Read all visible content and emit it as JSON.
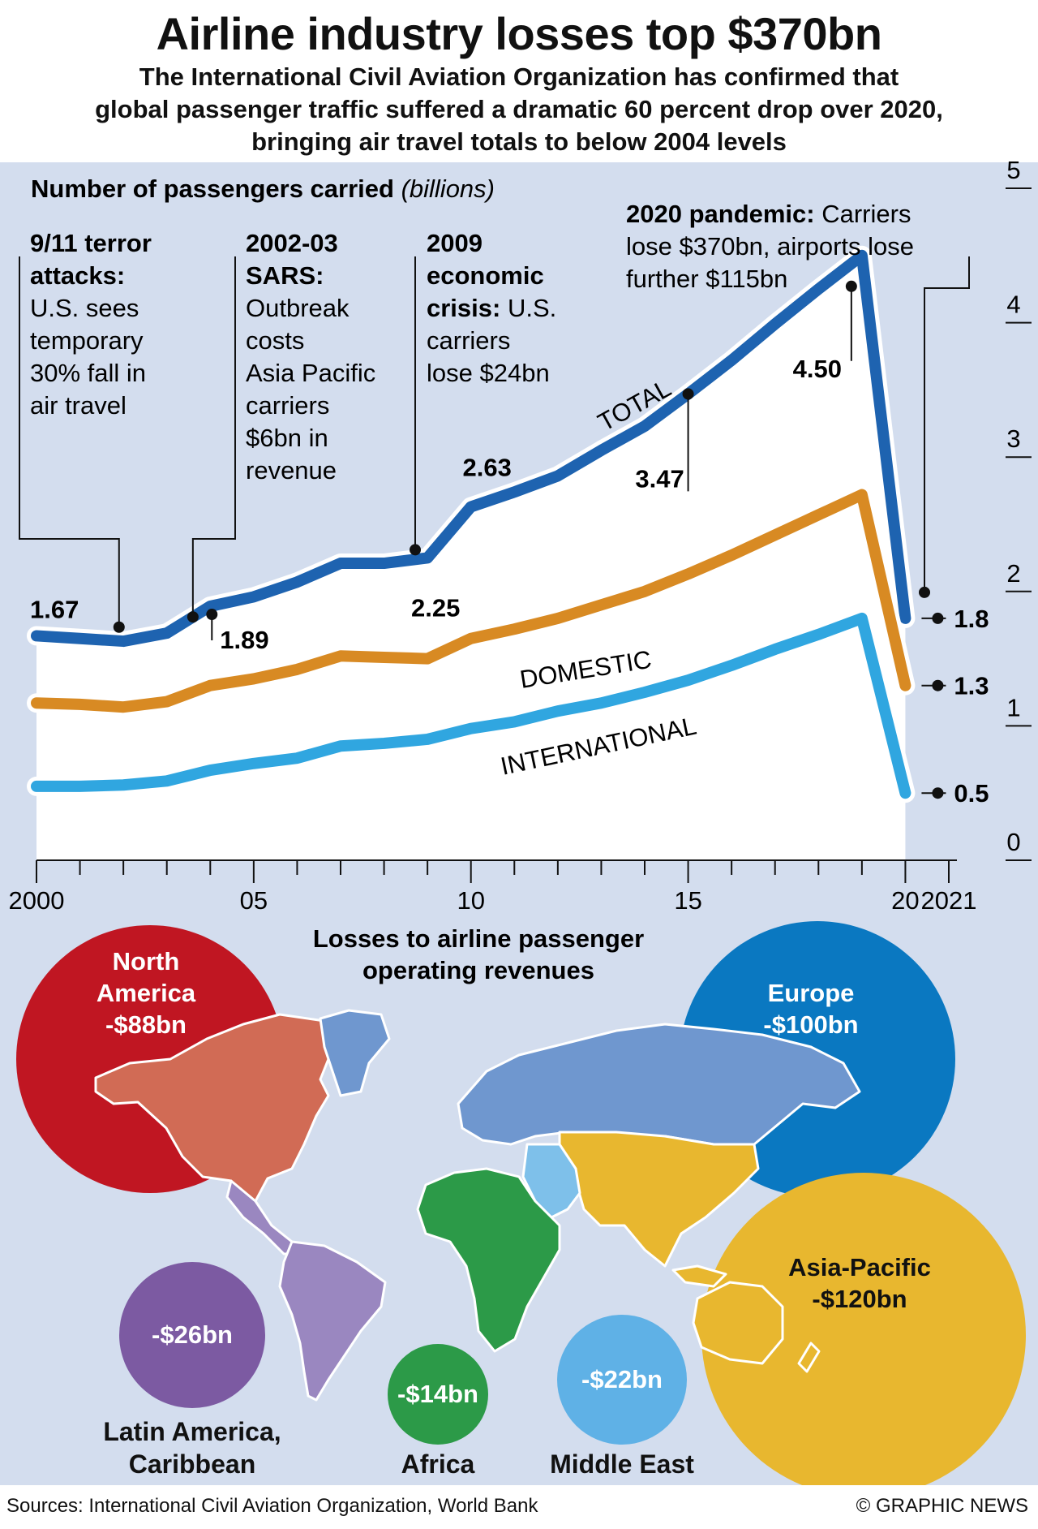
{
  "title": "Airline industry losses top $370bn",
  "subtitle_lines": [
    "The International Civil Aviation Organization has confirmed that",
    "global passenger traffic suffered a dramatic 60 percent drop over 2020,",
    "bringing air travel totals to below 2004 levels"
  ],
  "chart_heading": "Number of passengers carried",
  "chart_heading_units": "(billions)",
  "colors": {
    "background_panel": "#d3ddee",
    "total": "#1e63b0",
    "domestic": "#d88a23",
    "international": "#30a6e0",
    "north_america": "#c01622",
    "europe": "#0a78c1",
    "asia_pacific": "#e8b72f",
    "latin_america": "#7c5aa2",
    "africa": "#2c9a48",
    "middle_east": "#5fb1e6"
  },
  "chart_data": {
    "type": "line",
    "x": [
      2000,
      2001,
      2002,
      2003,
      2004,
      2005,
      2006,
      2007,
      2008,
      2009,
      2010,
      2011,
      2012,
      2013,
      2014,
      2015,
      2016,
      2017,
      2018,
      2019,
      2020
    ],
    "ylim": [
      0,
      5
    ],
    "xlim": [
      2000,
      2021
    ],
    "y_ticks": [
      "0",
      "1",
      "2",
      "3",
      "4",
      "5"
    ],
    "x_tick_labels": [
      {
        "year": 2000,
        "label": "2000"
      },
      {
        "year": 2005,
        "label": "05"
      },
      {
        "year": 2010,
        "label": "10"
      },
      {
        "year": 2015,
        "label": "15"
      },
      {
        "year": 2020,
        "label": "20"
      },
      {
        "year": 2021,
        "label": "2021"
      }
    ],
    "series": [
      {
        "name": "TOTAL",
        "color": "#1e63b0",
        "values": [
          1.67,
          1.65,
          1.63,
          1.69,
          1.89,
          1.96,
          2.07,
          2.21,
          2.21,
          2.25,
          2.63,
          2.74,
          2.86,
          3.05,
          3.23,
          3.47,
          3.72,
          3.99,
          4.25,
          4.5,
          1.8
        ]
      },
      {
        "name": "DOMESTIC",
        "color": "#d88a23",
        "values": [
          1.17,
          1.16,
          1.14,
          1.18,
          1.3,
          1.35,
          1.42,
          1.52,
          1.51,
          1.5,
          1.65,
          1.72,
          1.8,
          1.9,
          2.0,
          2.13,
          2.27,
          2.42,
          2.57,
          2.72,
          1.3
        ]
      },
      {
        "name": "INTERNATIONAL",
        "color": "#30a6e0",
        "values": [
          0.55,
          0.55,
          0.56,
          0.59,
          0.67,
          0.72,
          0.76,
          0.85,
          0.87,
          0.9,
          0.98,
          1.03,
          1.11,
          1.17,
          1.25,
          1.34,
          1.45,
          1.57,
          1.68,
          1.8,
          0.5
        ]
      }
    ],
    "value_labels": [
      {
        "year": 2000,
        "value": "1.67"
      },
      {
        "year": 2004,
        "value": "1.89"
      },
      {
        "year": 2009,
        "value": "2.25"
      },
      {
        "year": 2010,
        "value": "2.63"
      },
      {
        "year": 2015,
        "value": "3.47"
      },
      {
        "year": 2019,
        "value": "4.50"
      },
      {
        "year": 2020,
        "value": "1.8",
        "series": "TOTAL"
      },
      {
        "year": 2020,
        "value": "1.3",
        "series": "DOMESTIC"
      },
      {
        "year": 2020,
        "value": "0.5",
        "series": "INTERNATIONAL"
      }
    ]
  },
  "annotations": [
    {
      "key": "a911",
      "bold": "9/11 terror attacks:",
      "text": "U.S. sees temporary 30% fall in air travel"
    },
    {
      "key": "sars",
      "bold": "2002-03 SARS:",
      "text": "Outbreak costs Asia Pacific carriers $6bn in revenue"
    },
    {
      "key": "crisis",
      "bold": "2009 economic crisis:",
      "text": "U.S. carriers lose $24bn"
    },
    {
      "key": "pandemic",
      "bold": "2020 pandemic:",
      "text": "Carriers lose $370bn, airports lose further $115bn"
    }
  ],
  "losses": {
    "heading": "Losses to airline passenger operating revenues",
    "regions": [
      {
        "key": "north_america",
        "name": "North America",
        "value": "-$88bn"
      },
      {
        "key": "europe",
        "name": "Europe",
        "value": "-$100bn"
      },
      {
        "key": "asia_pacific",
        "name": "Asia-Pacific",
        "value": "-$120bn"
      },
      {
        "key": "latin_america",
        "name": "Latin America, Caribbean",
        "value": "-$26bn"
      },
      {
        "key": "africa",
        "name": "Africa",
        "value": "-$14bn"
      },
      {
        "key": "middle_east",
        "name": "Middle East",
        "value": "-$22bn"
      }
    ]
  },
  "footer": {
    "sources": "Sources: International Civil Aviation Organization, World Bank",
    "credit": "© GRAPHIC NEWS"
  }
}
